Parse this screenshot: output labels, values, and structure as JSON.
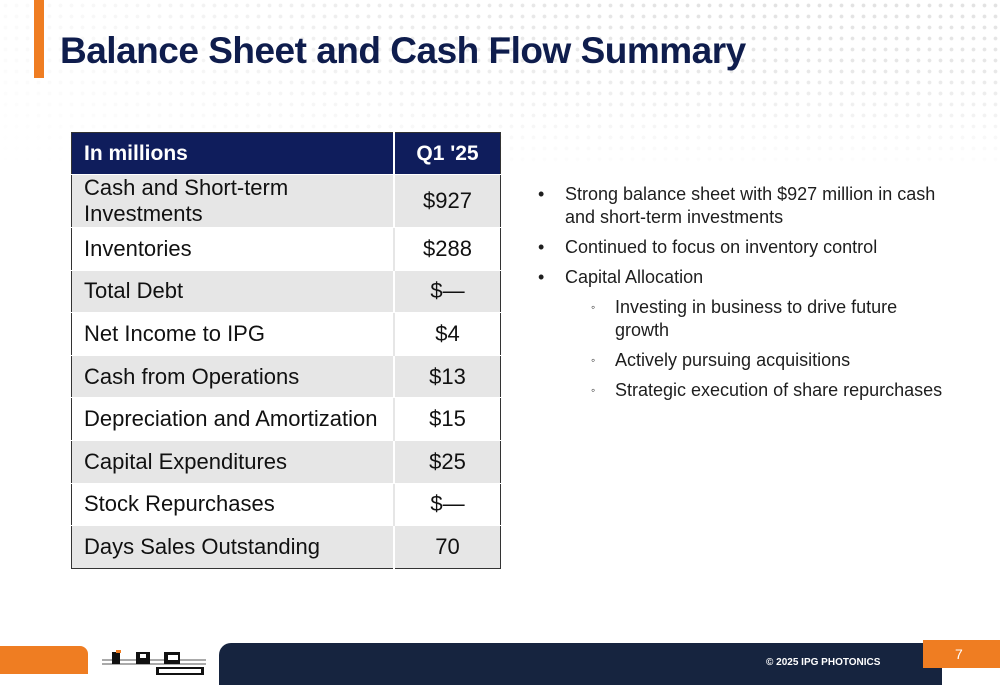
{
  "slide": {
    "title": "Balance Sheet and Cash Flow Summary",
    "page_number": "7",
    "footer_text": "© 2025 IPG PHOTONICS",
    "logo_text": "IPG PHOTONICS"
  },
  "table": {
    "header_label": "In millions",
    "header_period": "Q1 '25",
    "rows": [
      {
        "label": "Cash and Short-term Investments",
        "value": "$927"
      },
      {
        "label": "Inventories",
        "value": "$288"
      },
      {
        "label": "Total Debt",
        "value": "$—"
      },
      {
        "label": "Net Income to IPG",
        "value": "$4"
      },
      {
        "label": "Cash from Operations",
        "value": "$13"
      },
      {
        "label": "Depreciation and Amortization",
        "value": "$15"
      },
      {
        "label": "Capital Expenditures",
        "value": "$25"
      },
      {
        "label": "Stock Repurchases",
        "value": "$—"
      },
      {
        "label": "Days Sales Outstanding",
        "value": "70"
      }
    ]
  },
  "bullets": {
    "items": [
      {
        "text": "Strong balance sheet with $927 million in cash and short-term investments"
      },
      {
        "text": "Continued to focus on inventory control"
      },
      {
        "text": "Capital Allocation"
      }
    ],
    "sub_items": [
      {
        "text": "Investing in business to drive future growth"
      },
      {
        "text": "Actively pursuing acquisitions"
      },
      {
        "text": "Strategic execution of share repurchases"
      }
    ],
    "bullet_glyph": "•",
    "sub_bullet_glyph": "◦"
  },
  "colors": {
    "accent_orange": "#ef7d22",
    "navy": "#0f1d5c",
    "footer_navy": "#16243f",
    "row_shade": "#e6e6e6"
  }
}
